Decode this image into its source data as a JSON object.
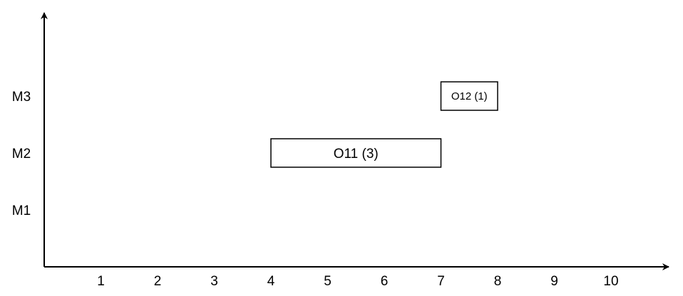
{
  "chart_data": {
    "type": "gantt",
    "x": {
      "ticks": [
        1,
        2,
        3,
        4,
        5,
        6,
        7,
        8,
        9,
        10
      ],
      "range": [
        0,
        11
      ]
    },
    "y": {
      "categories": [
        "M1",
        "M2",
        "M3"
      ]
    },
    "tasks": [
      {
        "label": "O11 (3)",
        "machine": "M2",
        "start": 4,
        "end": 7
      },
      {
        "label": "O12 (1)",
        "machine": "M3",
        "start": 7,
        "end": 8
      }
    ],
    "grid": false,
    "colors": {
      "axis": "#000000",
      "bar_fill": "#ffffff",
      "bar_stroke": "#000000"
    }
  }
}
